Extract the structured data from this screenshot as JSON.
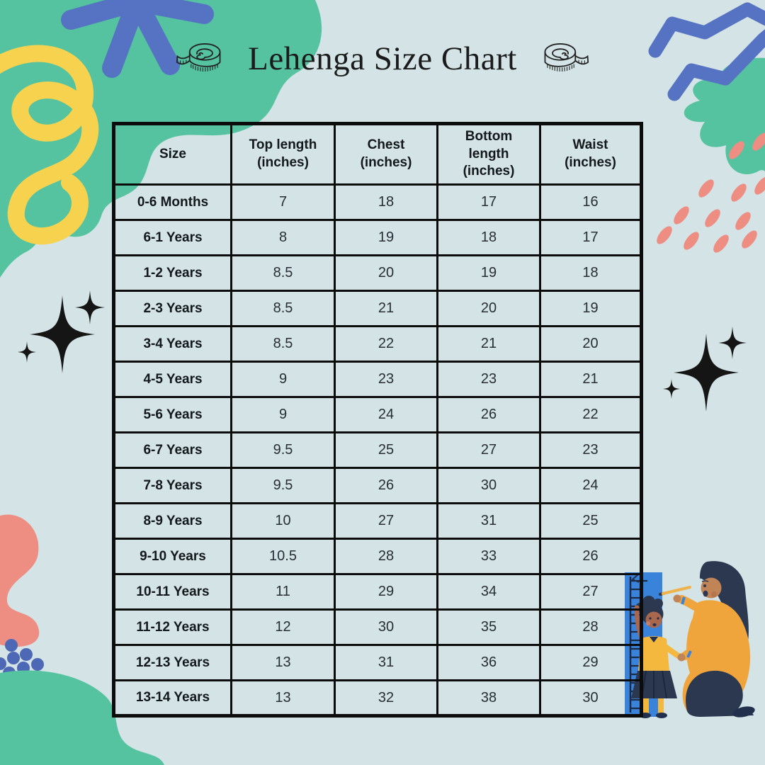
{
  "title": "Lehenga Size Chart",
  "title_icons": [
    "measuring-tape-icon-left",
    "measuring-tape-icon-right"
  ],
  "colors": {
    "background": "#d3e3e6",
    "teal": "#55c3a0",
    "blue": "#5673c3",
    "dot_blue": "#4d68b4",
    "yellow": "#f7d24e",
    "coral": "#ee8d81",
    "table_border": "#0c0c0c",
    "ruler_blue": "#3a83db",
    "illustration_navy": "#2c3850",
    "illustration_orange": "#f0a53c"
  },
  "table": {
    "columns": [
      {
        "label": "Size",
        "lines": [
          "Size"
        ]
      },
      {
        "label": "Top length (inches)",
        "lines": [
          "Top length",
          "(inches)"
        ]
      },
      {
        "label": "Chest (inches)",
        "lines": [
          "Chest",
          "(inches)"
        ]
      },
      {
        "label": "Bottom length (inches)",
        "lines": [
          "Bottom",
          "length",
          "(inches)"
        ]
      },
      {
        "label": "Waist (inches)",
        "lines": [
          "Waist",
          "(inches)"
        ]
      }
    ],
    "rows": [
      {
        "size": "0-6 Months",
        "values": [
          "7",
          "18",
          "17",
          "16"
        ]
      },
      {
        "size": "6-1 Years",
        "values": [
          "8",
          "19",
          "18",
          "17"
        ]
      },
      {
        "size": "1-2 Years",
        "values": [
          "8.5",
          "20",
          "19",
          "18"
        ]
      },
      {
        "size": "2-3 Years",
        "values": [
          "8.5",
          "21",
          "20",
          "19"
        ]
      },
      {
        "size": "3-4 Years",
        "values": [
          "8.5",
          "22",
          "21",
          "20"
        ]
      },
      {
        "size": "4-5 Years",
        "values": [
          "9",
          "23",
          "23",
          "21"
        ]
      },
      {
        "size": "5-6 Years",
        "values": [
          "9",
          "24",
          "26",
          "22"
        ]
      },
      {
        "size": "6-7 Years",
        "values": [
          "9.5",
          "25",
          "27",
          "23"
        ]
      },
      {
        "size": "7-8 Years",
        "values": [
          "9.5",
          "26",
          "30",
          "24"
        ]
      },
      {
        "size": "8-9 Years",
        "values": [
          "10",
          "27",
          "31",
          "25"
        ]
      },
      {
        "size": "9-10 Years",
        "values": [
          "10.5",
          "28",
          "33",
          "26"
        ]
      },
      {
        "size": "10-11 Years",
        "values": [
          "11",
          "29",
          "34",
          "27"
        ]
      },
      {
        "size": "11-12 Years",
        "values": [
          "12",
          "30",
          "35",
          "28"
        ]
      },
      {
        "size": "12-13 Years",
        "values": [
          "13",
          "31",
          "36",
          "29"
        ]
      },
      {
        "size": "13-14 Years",
        "values": [
          "13",
          "32",
          "38",
          "30"
        ]
      }
    ]
  },
  "decorations": [
    "teal-blob-top-left",
    "blue-asterisk",
    "yellow-loop-squiggle",
    "blue-zigzag-lines",
    "teal-blob-top-right",
    "coral-rain-dashes",
    "black-sparkles-left",
    "black-sparkles-right",
    "coral-blob-left",
    "blue-dots-cluster",
    "teal-blob-bottom-left",
    "mother-measuring-child-height-illustration"
  ],
  "chart_data": {
    "type": "table",
    "title": "Lehenga Size Chart",
    "columns": [
      "Size",
      "Top length (inches)",
      "Chest (inches)",
      "Bottom length (inches)",
      "Waist (inches)"
    ],
    "rows": [
      [
        "0-6 Months",
        7,
        18,
        17,
        16
      ],
      [
        "6-1 Years",
        8,
        19,
        18,
        17
      ],
      [
        "1-2 Years",
        8.5,
        20,
        19,
        18
      ],
      [
        "2-3 Years",
        8.5,
        21,
        20,
        19
      ],
      [
        "3-4 Years",
        8.5,
        22,
        21,
        20
      ],
      [
        "4-5 Years",
        9,
        23,
        23,
        21
      ],
      [
        "5-6 Years",
        9,
        24,
        26,
        22
      ],
      [
        "6-7 Years",
        9.5,
        25,
        27,
        23
      ],
      [
        "7-8 Years",
        9.5,
        26,
        30,
        24
      ],
      [
        "8-9 Years",
        10,
        27,
        31,
        25
      ],
      [
        "9-10 Years",
        10.5,
        28,
        33,
        26
      ],
      [
        "10-11 Years",
        11,
        29,
        34,
        27
      ],
      [
        "11-12 Years",
        12,
        30,
        35,
        28
      ],
      [
        "12-13 Years",
        13,
        31,
        36,
        29
      ],
      [
        "13-14 Years",
        13,
        32,
        38,
        30
      ]
    ]
  }
}
